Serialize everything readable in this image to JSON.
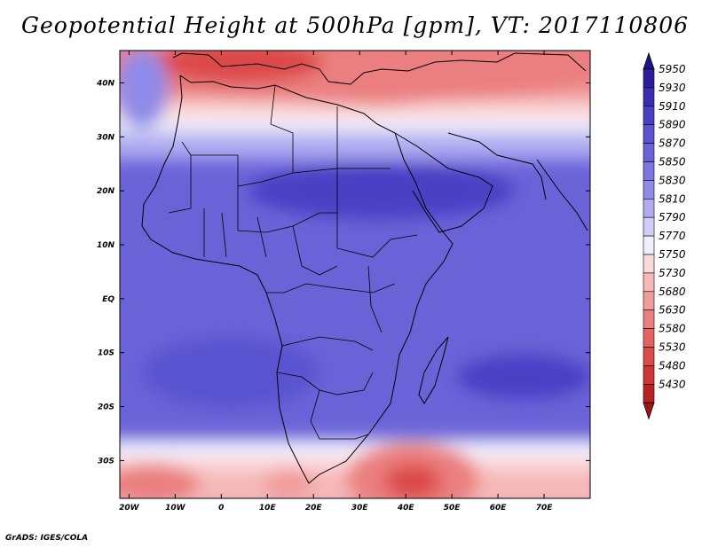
{
  "title": "Geopotential Height at 500hPa [gpm], VT: 2017110806",
  "credit": "GrADS: IGES/COLA",
  "map": {
    "field": "Geopotential Height at 500hPa",
    "units": "gpm",
    "valid_time": "2017110806",
    "lon_range": [
      -22,
      80
    ],
    "lat_range": [
      -37,
      46
    ],
    "x_ticks": [
      {
        "value": -20,
        "label": "20W"
      },
      {
        "value": -10,
        "label": "10W"
      },
      {
        "value": 0,
        "label": "0"
      },
      {
        "value": 10,
        "label": "10E"
      },
      {
        "value": 20,
        "label": "20E"
      },
      {
        "value": 30,
        "label": "30E"
      },
      {
        "value": 40,
        "label": "40E"
      },
      {
        "value": 50,
        "label": "50E"
      },
      {
        "value": 60,
        "label": "60E"
      },
      {
        "value": 70,
        "label": "70E"
      }
    ],
    "y_ticks": [
      {
        "value": 40,
        "label": "40N"
      },
      {
        "value": 30,
        "label": "30N"
      },
      {
        "value": 20,
        "label": "20N"
      },
      {
        "value": 10,
        "label": "10N"
      },
      {
        "value": 0,
        "label": "EQ"
      },
      {
        "value": -10,
        "label": "10S"
      },
      {
        "value": -20,
        "label": "20S"
      },
      {
        "value": -30,
        "label": "30S"
      }
    ]
  },
  "colorbar": {
    "levels": [
      {
        "label": "5950",
        "color": "#2b1e9c"
      },
      {
        "label": "5930",
        "color": "#3a2fb3"
      },
      {
        "label": "5910",
        "color": "#4a40c4"
      },
      {
        "label": "5890",
        "color": "#5a52cf"
      },
      {
        "label": "5870",
        "color": "#6a63d8"
      },
      {
        "label": "5850",
        "color": "#7a75e0"
      },
      {
        "label": "5830",
        "color": "#8f8be8"
      },
      {
        "label": "5810",
        "color": "#aeabf0"
      },
      {
        "label": "5790",
        "color": "#cfcdf7"
      },
      {
        "label": "5770",
        "color": "#eeeefd"
      },
      {
        "label": "5750",
        "color": "#fbd9d9"
      },
      {
        "label": "5730",
        "color": "#f6b8b8"
      },
      {
        "label": "5680",
        "color": "#f19b9b"
      },
      {
        "label": "5630",
        "color": "#eb7f7f"
      },
      {
        "label": "5580",
        "color": "#e46464"
      },
      {
        "label": "5530",
        "color": "#dc4a4a"
      },
      {
        "label": "5480",
        "color": "#d03434"
      },
      {
        "label": "5430",
        "color": "#b82222"
      }
    ],
    "top_arrow_color": "#1e1488",
    "bottom_arrow_color": "#a01414"
  }
}
